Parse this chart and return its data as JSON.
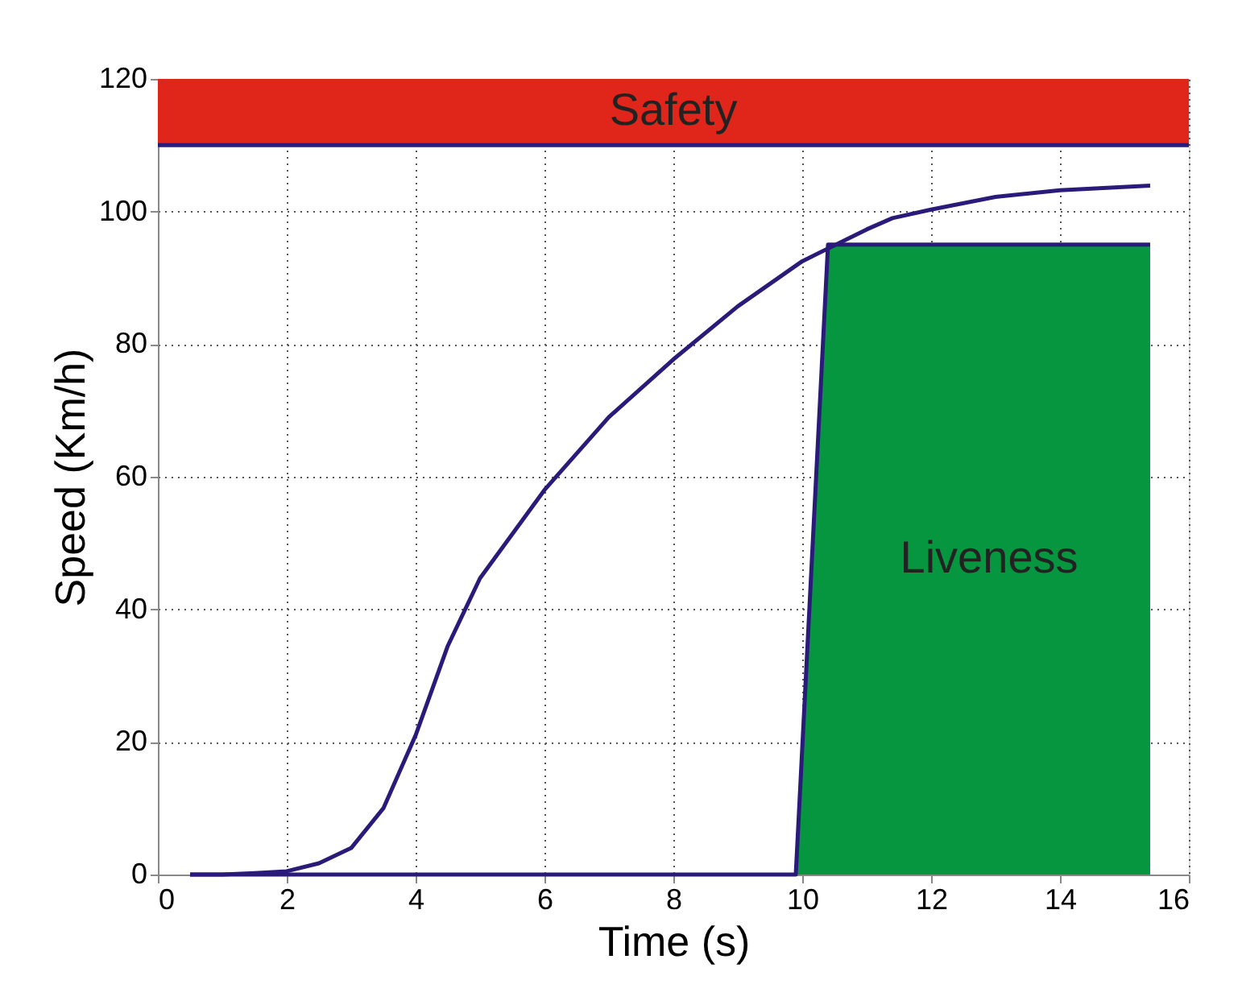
{
  "chart_data": {
    "type": "line",
    "xlabel": "Time (s)",
    "ylabel": "Speed (Km/h)",
    "xlim": [
      0,
      16
    ],
    "xticks": [
      0,
      2,
      4,
      6,
      8,
      10,
      12,
      14,
      16
    ],
    "ylim": [
      0,
      120
    ],
    "yticks": [
      0,
      20,
      40,
      60,
      80,
      100,
      120
    ],
    "grid": true,
    "series": [
      {
        "color": "#2a1b7a",
        "x": [
          0.5,
          1,
          1.5,
          2,
          2.5,
          3,
          3.5,
          4,
          4.5,
          5,
          6,
          7,
          8,
          9,
          10,
          11,
          11.4,
          12,
          13,
          14,
          15.4
        ],
        "values": [
          0,
          0,
          0.2,
          0.5,
          1.7,
          4,
          10,
          21,
          34.5,
          44.7,
          58,
          69,
          77.7,
          85.7,
          92.5,
          97.3,
          99,
          100.3,
          102.2,
          103.2,
          103.9
        ]
      },
      {
        "type": "area",
        "color": "#05963f",
        "x": [
          0.5,
          9.9,
          10.4,
          15.4
        ],
        "values": [
          0,
          0,
          95,
          95
        ]
      }
    ],
    "bands": [
      {
        "axis": "y",
        "from": 110,
        "to": 120,
        "label": "Safety",
        "color": "#e0251b"
      }
    ],
    "ref_lines": [
      {
        "axis": "y",
        "value": 110,
        "color": "#2a1b7a"
      }
    ],
    "annotations": [
      "Liveness"
    ]
  }
}
